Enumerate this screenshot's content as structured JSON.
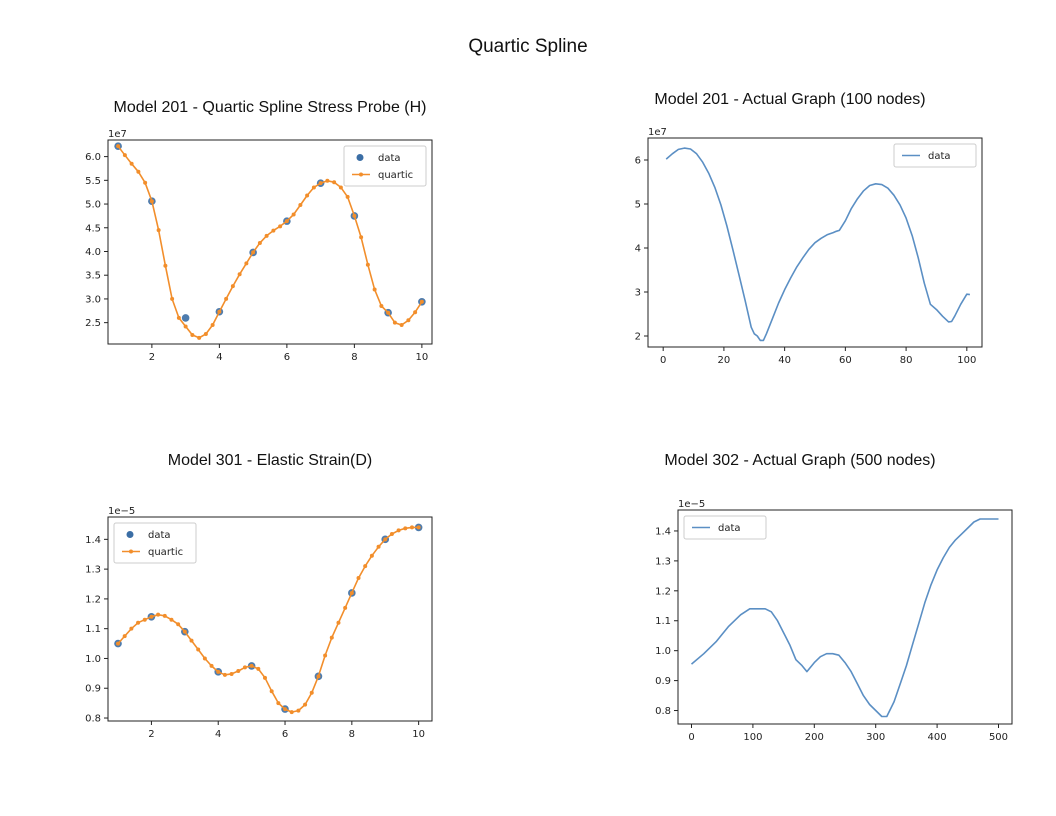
{
  "page_title": "Quartic Spline",
  "chart_data": [
    {
      "type": "line",
      "title": "Model 201 - Quartic Spline Stress Probe (H)",
      "xlabel": "",
      "ylabel": "",
      "offset_text": "1e7",
      "xlim": [
        0.7,
        10.3
      ],
      "ylim": [
        2.05,
        6.35
      ],
      "x_ticks": [
        2,
        4,
        6,
        8,
        10
      ],
      "x_tick_labels": [
        "2",
        "4",
        "6",
        "8",
        "10"
      ],
      "y_ticks": [
        2.5,
        3.0,
        3.5,
        4.0,
        4.5,
        5.0,
        5.5,
        6.0
      ],
      "y_tick_labels": [
        "2.5",
        "3.0",
        "3.5",
        "4.0",
        "4.5",
        "5.0",
        "5.5",
        "6.0"
      ],
      "legend_position": "top-right",
      "grid": false,
      "series": [
        {
          "name": "data",
          "kind": "scatter",
          "color": "#3b6ea5",
          "x": [
            1,
            2,
            3,
            4,
            5,
            6,
            7,
            8,
            9,
            10
          ],
          "y": [
            6.22,
            5.06,
            2.6,
            2.73,
            3.98,
            4.64,
            5.44,
            4.75,
            2.71,
            2.94
          ]
        },
        {
          "name": "quartic",
          "kind": "line-markers",
          "color": "#f28e2b",
          "x": [
            1.0,
            1.2,
            1.4,
            1.6,
            1.8,
            2.0,
            2.2,
            2.4,
            2.6,
            2.8,
            3.0,
            3.2,
            3.4,
            3.6,
            3.8,
            4.0,
            4.2,
            4.4,
            4.6,
            4.8,
            5.0,
            5.2,
            5.4,
            5.6,
            5.8,
            6.0,
            6.2,
            6.4,
            6.6,
            6.8,
            7.0,
            7.2,
            7.4,
            7.6,
            7.8,
            8.0,
            8.2,
            8.4,
            8.6,
            8.8,
            9.0,
            9.2,
            9.4,
            9.6,
            9.8,
            10.0
          ],
          "y": [
            6.22,
            6.03,
            5.85,
            5.68,
            5.45,
            5.06,
            4.45,
            3.7,
            3.0,
            2.6,
            2.42,
            2.24,
            2.18,
            2.26,
            2.45,
            2.73,
            3.0,
            3.27,
            3.52,
            3.75,
            3.98,
            4.18,
            4.33,
            4.44,
            4.53,
            4.64,
            4.78,
            4.98,
            5.18,
            5.35,
            5.44,
            5.49,
            5.46,
            5.35,
            5.15,
            4.75,
            4.3,
            3.72,
            3.2,
            2.85,
            2.71,
            2.5,
            2.45,
            2.55,
            2.72,
            2.94
          ]
        }
      ]
    },
    {
      "type": "line",
      "title": "Model 201 - Actual Graph (100 nodes)",
      "xlabel": "",
      "ylabel": "",
      "offset_text": "1e7",
      "xlim": [
        -5,
        105
      ],
      "ylim": [
        1.75,
        6.5
      ],
      "x_ticks": [
        0,
        20,
        40,
        60,
        80,
        100
      ],
      "x_tick_labels": [
        "0",
        "20",
        "40",
        "60",
        "80",
        "100"
      ],
      "y_ticks": [
        2,
        3,
        4,
        5,
        6
      ],
      "y_tick_labels": [
        "2",
        "3",
        "4",
        "5",
        "6"
      ],
      "legend_position": "top-right",
      "grid": false,
      "series": [
        {
          "name": "data",
          "kind": "line",
          "color": "#5b8fc4",
          "x": [
            1,
            3,
            5,
            7,
            9,
            11,
            13,
            15,
            17,
            19,
            21,
            23,
            25,
            27,
            29,
            30,
            31,
            32,
            33,
            34,
            36,
            38,
            40,
            42,
            44,
            46,
            48,
            50,
            52,
            54,
            56,
            57,
            58,
            60,
            62,
            64,
            66,
            68,
            70,
            72,
            74,
            76,
            78,
            80,
            82,
            84,
            86,
            88,
            90,
            92,
            94,
            95,
            96,
            98,
            100,
            101
          ],
          "y": [
            6.02,
            6.14,
            6.24,
            6.27,
            6.25,
            6.14,
            5.95,
            5.7,
            5.38,
            4.98,
            4.5,
            3.95,
            3.38,
            2.8,
            2.2,
            2.05,
            2.0,
            1.9,
            1.9,
            2.05,
            2.4,
            2.75,
            3.05,
            3.32,
            3.57,
            3.78,
            3.97,
            4.12,
            4.22,
            4.3,
            4.35,
            4.38,
            4.4,
            4.62,
            4.9,
            5.12,
            5.3,
            5.42,
            5.46,
            5.44,
            5.36,
            5.2,
            4.98,
            4.68,
            4.28,
            3.78,
            3.2,
            2.72,
            2.6,
            2.45,
            2.32,
            2.33,
            2.45,
            2.72,
            2.95,
            2.94
          ]
        }
      ]
    },
    {
      "type": "line",
      "title": "Model 301 - Elastic Strain(D)",
      "xlabel": "",
      "ylabel": "",
      "offset_text": "1e−5",
      "xlim": [
        0.7,
        10.4
      ],
      "ylim": [
        0.79,
        1.475
      ],
      "x_ticks": [
        2,
        4,
        6,
        8,
        10
      ],
      "x_tick_labels": [
        "2",
        "4",
        "6",
        "8",
        "10"
      ],
      "y_ticks": [
        0.8,
        0.9,
        1.0,
        1.1,
        1.2,
        1.3,
        1.4
      ],
      "y_tick_labels": [
        "0.8",
        "0.9",
        "1.0",
        "1.1",
        "1.2",
        "1.3",
        "1.4"
      ],
      "legend_position": "top-left",
      "grid": false,
      "series": [
        {
          "name": "data",
          "kind": "scatter",
          "color": "#3b6ea5",
          "x": [
            1,
            2,
            3,
            4,
            5,
            6,
            7,
            8,
            9,
            10
          ],
          "y": [
            1.05,
            1.14,
            1.09,
            0.955,
            0.975,
            0.83,
            0.94,
            1.22,
            1.4,
            1.44
          ]
        },
        {
          "name": "quartic",
          "kind": "line-markers",
          "color": "#f28e2b",
          "x": [
            1.0,
            1.2,
            1.4,
            1.6,
            1.8,
            2.0,
            2.2,
            2.4,
            2.6,
            2.8,
            3.0,
            3.2,
            3.4,
            3.6,
            3.8,
            4.0,
            4.2,
            4.4,
            4.6,
            4.8,
            5.0,
            5.2,
            5.4,
            5.6,
            5.8,
            6.0,
            6.2,
            6.4,
            6.6,
            6.8,
            7.0,
            7.2,
            7.4,
            7.6,
            7.8,
            8.0,
            8.2,
            8.4,
            8.6,
            8.8,
            9.0,
            9.2,
            9.4,
            9.6,
            9.8,
            10.0
          ],
          "y": [
            1.05,
            1.075,
            1.1,
            1.12,
            1.13,
            1.14,
            1.147,
            1.143,
            1.13,
            1.115,
            1.09,
            1.06,
            1.03,
            1.0,
            0.975,
            0.955,
            0.945,
            0.948,
            0.958,
            0.97,
            0.975,
            0.965,
            0.935,
            0.89,
            0.85,
            0.83,
            0.82,
            0.825,
            0.845,
            0.885,
            0.94,
            1.01,
            1.07,
            1.12,
            1.17,
            1.22,
            1.27,
            1.31,
            1.345,
            1.375,
            1.4,
            1.418,
            1.43,
            1.437,
            1.44,
            1.44
          ]
        }
      ]
    },
    {
      "type": "line",
      "title": "Model 302 - Actual Graph (500 nodes)",
      "xlabel": "",
      "ylabel": "",
      "offset_text": "1e−5",
      "xlim": [
        -22,
        522
      ],
      "ylim": [
        0.755,
        1.47
      ],
      "x_ticks": [
        0,
        100,
        200,
        300,
        400,
        500
      ],
      "x_tick_labels": [
        "0",
        "100",
        "200",
        "300",
        "400",
        "500"
      ],
      "y_ticks": [
        0.8,
        0.9,
        1.0,
        1.1,
        1.2,
        1.3,
        1.4
      ],
      "y_tick_labels": [
        "0.8",
        "0.9",
        "1.0",
        "1.1",
        "1.2",
        "1.3",
        "1.4"
      ],
      "legend_position": "top-left",
      "grid": false,
      "series": [
        {
          "name": "data",
          "kind": "line",
          "color": "#5b8fc4",
          "x": [
            0,
            20,
            40,
            60,
            80,
            95,
            100,
            110,
            120,
            130,
            140,
            150,
            160,
            170,
            180,
            188,
            200,
            210,
            220,
            230,
            240,
            250,
            260,
            270,
            280,
            290,
            300,
            310,
            318,
            330,
            340,
            350,
            360,
            370,
            380,
            390,
            400,
            410,
            420,
            430,
            440,
            450,
            460,
            470,
            480,
            490,
            500
          ],
          "y": [
            0.955,
            0.99,
            1.03,
            1.08,
            1.12,
            1.14,
            1.14,
            1.14,
            1.14,
            1.13,
            1.1,
            1.06,
            1.02,
            0.97,
            0.95,
            0.93,
            0.96,
            0.98,
            0.99,
            0.99,
            0.985,
            0.96,
            0.93,
            0.89,
            0.85,
            0.82,
            0.8,
            0.78,
            0.78,
            0.83,
            0.89,
            0.95,
            1.02,
            1.09,
            1.16,
            1.22,
            1.27,
            1.31,
            1.345,
            1.37,
            1.39,
            1.41,
            1.43,
            1.44,
            1.44,
            1.44,
            1.44
          ]
        }
      ]
    }
  ]
}
